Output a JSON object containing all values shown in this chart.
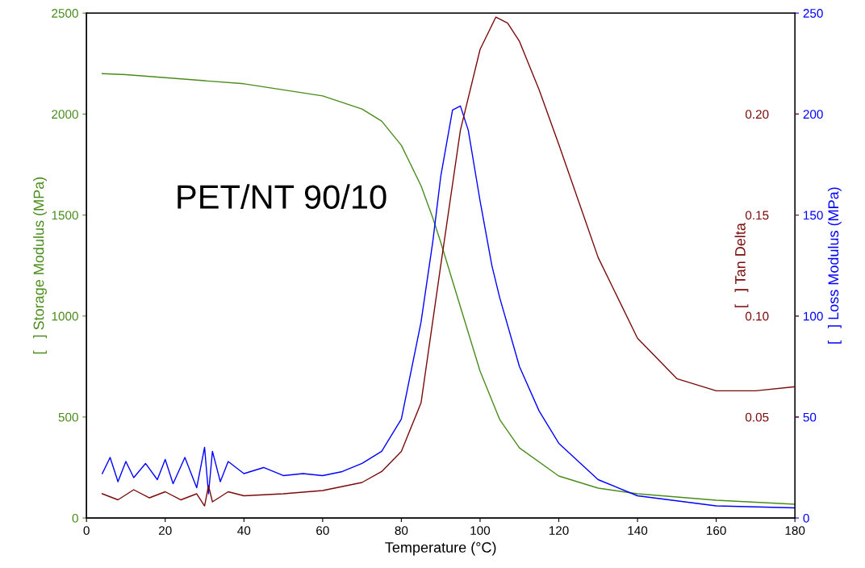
{
  "chart_data": {
    "type": "line",
    "xlabel": "Temperature (°C)",
    "ylabel": "[   ] Storage Modulus (MPa)",
    "y2label": "[   ] Tan Delta",
    "y3label": "[   ] Loss Modulus (MPa)",
    "annotations": [
      "PET/NT 90/10"
    ],
    "xlim": [
      0,
      180
    ],
    "xticks": [
      0,
      20,
      40,
      60,
      80,
      100,
      120,
      140,
      160,
      180
    ],
    "ylim": [
      0,
      2500
    ],
    "yticks": [
      0,
      500,
      1000,
      1500,
      2000,
      2500
    ],
    "y2lim": [
      0,
      0.25
    ],
    "y2ticks": [
      0.05,
      {
        "value": 0.1,
        "label": "0.10"
      },
      0.15,
      {
        "value": 0.2,
        "label": "0.20"
      }
    ],
    "y3lim": [
      0,
      250
    ],
    "y3ticks": [
      0,
      50,
      100,
      150,
      200,
      250
    ],
    "grid": false,
    "legend": false,
    "marker": "none",
    "line_style": "solid",
    "series": [
      {
        "axis": "y",
        "color": "#4a8c1c",
        "x": [
          4,
          10,
          20,
          30,
          40,
          50,
          60,
          70,
          75,
          80,
          85,
          88,
          90,
          95,
          100,
          105,
          110,
          120,
          130,
          140,
          160,
          180
        ],
        "values": [
          2200,
          2195,
          2180,
          2165,
          2150,
          2120,
          2090,
          2025,
          1965,
          1845,
          1645,
          1485,
          1365,
          1046,
          727,
          487,
          347,
          208,
          148,
          120,
          88,
          68
        ]
      },
      {
        "axis": "y3",
        "color": "#0000ff",
        "x": [
          4,
          6,
          8,
          10,
          12,
          15,
          18,
          20,
          22,
          25,
          28,
          30,
          31,
          32,
          34,
          36,
          40,
          45,
          50,
          55,
          60,
          65,
          70,
          75,
          80,
          85,
          88,
          90,
          93,
          95,
          97,
          100,
          103,
          105,
          110,
          115,
          120,
          130,
          140,
          160,
          180
        ],
        "values": [
          22,
          30,
          18,
          28,
          20,
          27,
          19,
          29,
          17,
          30,
          15,
          35,
          12,
          33,
          18,
          28,
          22,
          25,
          21,
          22,
          21,
          23,
          27,
          33,
          49,
          97,
          137,
          169,
          202,
          204,
          192,
          157,
          125,
          109,
          75,
          53,
          37,
          19,
          11,
          6,
          5
        ]
      },
      {
        "axis": "y2",
        "color": "#7a0a0a",
        "x": [
          4,
          8,
          12,
          16,
          20,
          24,
          28,
          30,
          31,
          32,
          36,
          40,
          50,
          60,
          70,
          75,
          80,
          85,
          90,
          95,
          100,
          104,
          107,
          110,
          115,
          120,
          130,
          140,
          150,
          160,
          170,
          180
        ],
        "values": [
          0.012,
          0.009,
          0.014,
          0.01,
          0.013,
          0.009,
          0.012,
          0.006,
          0.016,
          0.008,
          0.013,
          0.011,
          0.012,
          0.0136,
          0.0176,
          0.023,
          0.033,
          0.057,
          0.125,
          0.192,
          0.232,
          0.248,
          0.245,
          0.236,
          0.212,
          0.185,
          0.129,
          0.089,
          0.069,
          0.063,
          0.063,
          0.065
        ]
      }
    ]
  }
}
